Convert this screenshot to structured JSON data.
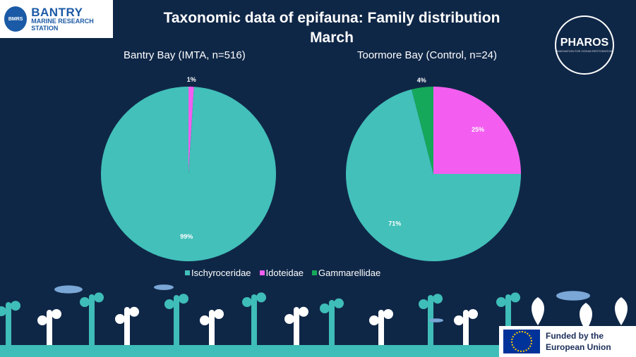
{
  "header": {
    "title": "Taxonomic  data of epifauna: Family distribution",
    "subtitle": "March"
  },
  "logos": {
    "bmrs_name": "BANTRY",
    "bmrs_sub": "MARINE RESEARCH STATION",
    "bmrs_badge": "BMRS",
    "pharos_name": "PHAROS",
    "pharos_tag": "INNOVATION FOR OCEAN RESTORATION",
    "eu_funding": "Funded by the European Union"
  },
  "colors": {
    "background": "#0f2747",
    "Ischyroceridae": "#42c0b9",
    "Idoteidae": "#f35ef0",
    "Gammarellidae": "#15a85a",
    "decor": "#3fbdb8"
  },
  "chart_data": [
    {
      "type": "pie",
      "title": "Bantry Bay (IMTA, n=516)",
      "categories": [
        "Idoteidae",
        "Ischyroceridae"
      ],
      "values": [
        1,
        99
      ],
      "labels": [
        "1%",
        "99%"
      ],
      "legend": "bottom"
    },
    {
      "type": "pie",
      "title": "Toormore Bay (Control, n=24)",
      "categories": [
        "Idoteidae",
        "Ischyroceridae",
        "Gammarellidae"
      ],
      "values": [
        25,
        71,
        4
      ],
      "labels": [
        "25%",
        "71%",
        "4%"
      ],
      "legend": "bottom"
    }
  ],
  "legend": [
    {
      "name": "Ischyroceridae"
    },
    {
      "name": "Idoteidae"
    },
    {
      "name": "Gammarellidae"
    }
  ]
}
